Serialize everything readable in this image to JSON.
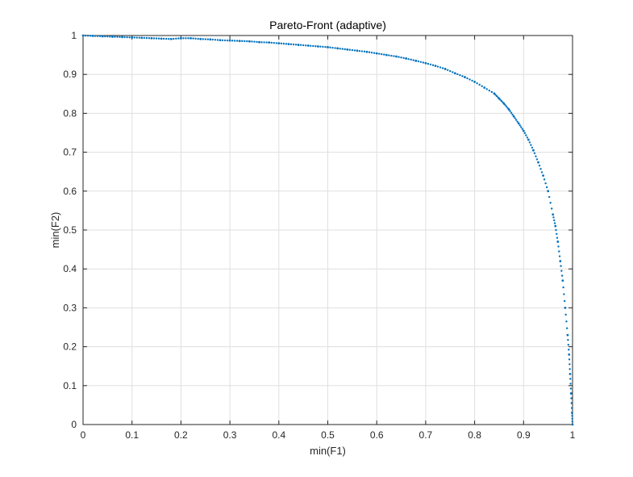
{
  "chart_data": {
    "type": "scatter",
    "title": "Pareto-Front (adaptive)",
    "xlabel": "min(F1)",
    "ylabel": "min(F2)",
    "xlim": [
      0,
      1
    ],
    "ylim": [
      0,
      1
    ],
    "xticks": [
      "0",
      "0.1",
      "0.2",
      "0.3",
      "0.4",
      "0.5",
      "0.6",
      "0.7",
      "0.8",
      "0.9",
      "1"
    ],
    "yticks": [
      "0",
      "0.1",
      "0.2",
      "0.3",
      "0.4",
      "0.5",
      "0.6",
      "0.7",
      "0.8",
      "0.9",
      "1"
    ],
    "grid": true,
    "marker_color": "#0072BD",
    "points": [
      [
        0.0,
        1.0
      ],
      [
        0.02,
        0.999
      ],
      [
        0.04,
        0.998
      ],
      [
        0.06,
        0.997
      ],
      [
        0.08,
        0.996
      ],
      [
        0.1,
        0.995
      ],
      [
        0.12,
        0.994
      ],
      [
        0.14,
        0.993
      ],
      [
        0.16,
        0.992
      ],
      [
        0.18,
        0.991
      ],
      [
        0.2,
        0.993
      ],
      [
        0.22,
        0.993
      ],
      [
        0.24,
        0.991
      ],
      [
        0.26,
        0.99
      ],
      [
        0.28,
        0.988
      ],
      [
        0.3,
        0.987
      ],
      [
        0.32,
        0.986
      ],
      [
        0.34,
        0.985
      ],
      [
        0.36,
        0.983
      ],
      [
        0.38,
        0.982
      ],
      [
        0.4,
        0.98
      ],
      [
        0.42,
        0.978
      ],
      [
        0.44,
        0.976
      ],
      [
        0.46,
        0.974
      ],
      [
        0.48,
        0.972
      ],
      [
        0.5,
        0.97
      ],
      [
        0.52,
        0.967
      ],
      [
        0.54,
        0.964
      ],
      [
        0.56,
        0.961
      ],
      [
        0.58,
        0.958
      ],
      [
        0.6,
        0.954
      ],
      [
        0.62,
        0.95
      ],
      [
        0.64,
        0.946
      ],
      [
        0.66,
        0.941
      ],
      [
        0.68,
        0.935
      ],
      [
        0.7,
        0.929
      ],
      [
        0.72,
        0.922
      ],
      [
        0.74,
        0.914
      ],
      [
        0.76,
        0.903
      ],
      [
        0.78,
        0.893
      ],
      [
        0.8,
        0.881
      ],
      [
        0.82,
        0.866
      ],
      [
        0.84,
        0.851
      ],
      [
        0.85,
        0.838
      ],
      [
        0.86,
        0.825
      ],
      [
        0.87,
        0.81
      ],
      [
        0.88,
        0.792
      ],
      [
        0.89,
        0.774
      ],
      [
        0.9,
        0.755
      ],
      [
        0.91,
        0.732
      ],
      [
        0.92,
        0.705
      ],
      [
        0.93,
        0.674
      ],
      [
        0.94,
        0.64
      ],
      [
        0.95,
        0.6
      ],
      [
        0.96,
        0.54
      ],
      [
        0.965,
        0.51
      ],
      [
        0.97,
        0.47
      ],
      [
        0.975,
        0.42
      ],
      [
        0.98,
        0.37
      ],
      [
        0.985,
        0.3
      ],
      [
        0.99,
        0.23
      ],
      [
        0.993,
        0.18
      ],
      [
        0.995,
        0.13
      ],
      [
        0.997,
        0.08
      ],
      [
        0.999,
        0.03
      ],
      [
        1.0,
        0.0
      ]
    ]
  }
}
